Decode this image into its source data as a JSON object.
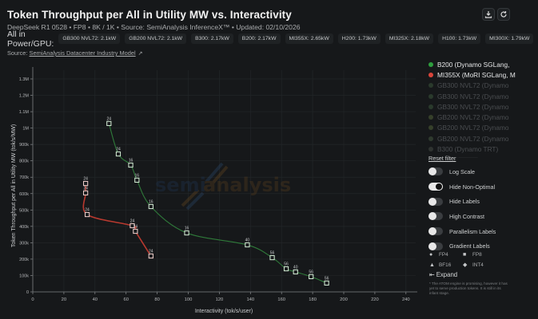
{
  "header": {
    "title": "Token Throughput per All in Utility MW vs. Interactivity",
    "subtitle": "DeepSeek R1 0528 • FP8 • 8K / 1K • Source: SemiAnalysis InferenceX™ • Updated: 02/10/2026",
    "power_label": "All in Power/GPU:",
    "power_chips": [
      "GB300 NVL72: 2.1kW",
      "GB200 NVL72: 2.1kW",
      "B300: 2.17kW",
      "B200: 2.17kW",
      "MI355X: 2.65kW",
      "H200: 1.73kW",
      "MI325X: 2.18kW",
      "H100: 1.73kW",
      "MI300X: 1.79kW"
    ],
    "source_prefix": "Source: ",
    "source_link": "SemiAnalysis Datacenter Industry Model",
    "icons": {
      "download": "download-icon",
      "reset": "refresh-icon",
      "external": "external-link-icon"
    }
  },
  "legend": {
    "items": [
      {
        "label": "B200 (Dynamo SGLang, ",
        "color": "#2e9e3e",
        "active": true
      },
      {
        "label": "MI355X (MoRI SGLang, M",
        "color": "#d9453a",
        "active": true
      },
      {
        "label": "GB300 NVL72 (Dynamo",
        "color": "#2a3a2c",
        "active": false
      },
      {
        "label": "GB300 NVL72 (Dynamo",
        "color": "#2a3a2c",
        "active": false
      },
      {
        "label": "GB300 NVL72 (Dynamo",
        "color": "#2a3a2c",
        "active": false
      },
      {
        "label": "GB200 NVL72 (Dynamo",
        "color": "#36402a",
        "active": false
      },
      {
        "label": "GB200 NVL72 (Dynamo",
        "color": "#36402a",
        "active": false
      },
      {
        "label": "GB200 NVL72 (Dynamo",
        "color": "#2f3a2e",
        "active": false
      },
      {
        "label": "B300 (Dynamo TRT)",
        "color": "#2f3330",
        "active": false
      }
    ],
    "reset_label": "Reset filter"
  },
  "toggles": [
    {
      "label": "Log Scale",
      "on": false
    },
    {
      "label": "Hide Non-Optimal",
      "on": true
    },
    {
      "label": "Hide Labels",
      "on": false
    },
    {
      "label": "High Contrast",
      "on": false
    },
    {
      "label": "Parallelism Labels",
      "on": false
    },
    {
      "label": "Gradient Labels",
      "on": false
    }
  ],
  "precision_legend": [
    {
      "label": "FP4",
      "icon": "●"
    },
    {
      "label": "FP8",
      "icon": "■"
    },
    {
      "label": "BF16",
      "icon": "▲"
    },
    {
      "label": "INT4",
      "icon": "◆"
    }
  ],
  "expand_label": "Expand",
  "footnote": "* The ATOM engine is promising, however it has yet to serve production tokens. It is still in its infant stage.",
  "watermark": {
    "left": "semi",
    "right": "analysis"
  },
  "chart_data": {
    "type": "line",
    "title": "Token Throughput per All in Utility MW vs. Interactivity",
    "xlabel": "Interactivity (tok/s/user)",
    "ylabel": "Token Throughput per All in Utility MW (tok/s/MW)",
    "xlim": [
      0,
      250
    ],
    "ylim": [
      0,
      1350000
    ],
    "x_ticks": [
      0,
      20,
      40,
      60,
      80,
      100,
      120,
      140,
      160,
      180,
      200,
      220,
      240
    ],
    "y_ticks": [
      0,
      100000,
      200000,
      300000,
      400000,
      500000,
      600000,
      700000,
      800000,
      900000,
      1000000,
      1100000,
      1200000,
      1300000
    ],
    "y_tick_labels": [
      "0",
      "100k",
      "200k",
      "300k",
      "400k",
      "500k",
      "600k",
      "700k",
      "800k",
      "900k",
      "1M",
      "1.1M",
      "1.2M",
      "1.3M"
    ],
    "grid": true,
    "legend_position": "right",
    "series": [
      {
        "name": "B200 (Dynamo SGLang)",
        "color": "#3fa34d",
        "marker": "square",
        "x": [
          49,
          55,
          63,
          67,
          76,
          99,
          138,
          154,
          163,
          169,
          179,
          189
        ],
        "y": [
          1028000,
          842000,
          774000,
          682000,
          521000,
          360000,
          287000,
          209000,
          141000,
          122000,
          93000,
          54000
        ],
        "labels": [
          "24",
          "24",
          "16",
          "16",
          "16",
          "16",
          "40",
          "56",
          "56",
          "40",
          "56",
          "56"
        ]
      },
      {
        "name": "MI355X (MoRI SGLang)",
        "color": "#d9453a",
        "marker": "square",
        "x": [
          34,
          34,
          35,
          64,
          66,
          76
        ],
        "y": [
          662000,
          604000,
          472000,
          404000,
          370000,
          219000
        ],
        "labels": [
          "24",
          "24",
          "24",
          "24",
          "24",
          "24"
        ]
      }
    ]
  }
}
